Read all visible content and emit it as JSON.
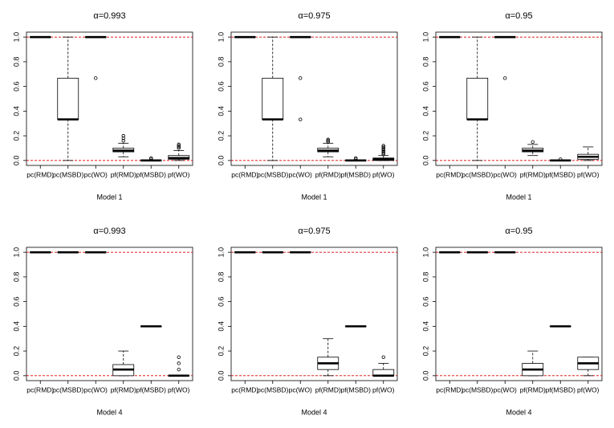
{
  "chart_data": [
    {
      "type": "box",
      "title": "α=0.993",
      "xlabel": "Model 1",
      "categories": [
        "pc(RMD)",
        "pc(MSBD)",
        "pc(WO)",
        "pf(RMD)",
        "pf(MSBD)",
        "pf(WO)"
      ],
      "boxes": [
        {
          "min": 1,
          "q1": 1,
          "median": 1,
          "q3": 1,
          "max": 1,
          "outliers": []
        },
        {
          "min": 0,
          "q1": 0.333,
          "median": 0.333,
          "q3": 0.667,
          "max": 1,
          "outliers": []
        },
        {
          "min": 1,
          "q1": 1,
          "median": 1,
          "q3": 1,
          "max": 1,
          "outliers": [
            0.667
          ]
        },
        {
          "min": 0.03,
          "q1": 0.07,
          "median": 0.08,
          "q3": 0.1,
          "max": 0.14,
          "outliers": [
            0.16,
            0.18,
            0.2
          ]
        },
        {
          "min": 0,
          "q1": 0,
          "median": 0,
          "q3": 0,
          "max": 0,
          "outliers": [
            0.01,
            0.02
          ]
        },
        {
          "min": 0,
          "q1": 0.01,
          "median": 0.02,
          "q3": 0.04,
          "max": 0.08,
          "outliers": [
            0.1,
            0.11,
            0.12,
            0.13
          ]
        }
      ],
      "ylim": [
        -0.04,
        1.04
      ],
      "yticks": [
        {
          "value": 0,
          "label": "0.0"
        },
        0.2,
        0.4,
        0.6,
        0.8,
        {
          "value": 1,
          "label": "1.0"
        }
      ],
      "hlines": [
        1,
        0
      ],
      "hline_color": "#e00000",
      "color": "#000000"
    },
    {
      "type": "box",
      "title": "α=0.975",
      "xlabel": "Model 1",
      "categories": [
        "pc(RMD)",
        "pc(MSBD)",
        "pc(WO)",
        "pf(RMD)",
        "pf(MSBD)",
        "pf(WO)"
      ],
      "boxes": [
        {
          "min": 1,
          "q1": 1,
          "median": 1,
          "q3": 1,
          "max": 1,
          "outliers": []
        },
        {
          "min": 0,
          "q1": 0.333,
          "median": 0.333,
          "q3": 0.667,
          "max": 1,
          "outliers": []
        },
        {
          "min": 1,
          "q1": 1,
          "median": 1,
          "q3": 1,
          "max": 1,
          "outliers": [
            0.667,
            0.333
          ]
        },
        {
          "min": 0.03,
          "q1": 0.07,
          "median": 0.08,
          "q3": 0.1,
          "max": 0.14,
          "outliers": [
            0.15,
            0.16,
            0.17
          ]
        },
        {
          "min": 0,
          "q1": 0,
          "median": 0,
          "q3": 0,
          "max": 0,
          "outliers": [
            0.01,
            0.02
          ]
        },
        {
          "min": 0,
          "q1": 0,
          "median": 0.01,
          "q3": 0.02,
          "max": 0.04,
          "outliers": [
            0.05,
            0.06,
            0.07,
            0.08,
            0.09,
            0.1,
            0.11,
            0.12
          ]
        }
      ],
      "ylim": [
        -0.04,
        1.04
      ],
      "yticks": [
        {
          "value": 0,
          "label": "0.0"
        },
        0.2,
        0.4,
        0.6,
        0.8,
        {
          "value": 1,
          "label": "1.0"
        }
      ],
      "hlines": [
        1,
        0
      ],
      "hline_color": "#e00000",
      "color": "#000000"
    },
    {
      "type": "box",
      "title": "α=0.95",
      "xlabel": "Model 1",
      "categories": [
        "pc(RMD)",
        "pc(MSBD)",
        "pc(WO)",
        "pf(RMD)",
        "pf(MSBD)",
        "pf(WO)"
      ],
      "boxes": [
        {
          "min": 1,
          "q1": 1,
          "median": 1,
          "q3": 1,
          "max": 1,
          "outliers": []
        },
        {
          "min": 0,
          "q1": 0.333,
          "median": 0.333,
          "q3": 0.667,
          "max": 1,
          "outliers": []
        },
        {
          "min": 1,
          "q1": 1,
          "median": 1,
          "q3": 1,
          "max": 1,
          "outliers": [
            0.667
          ]
        },
        {
          "min": 0.04,
          "q1": 0.07,
          "median": 0.08,
          "q3": 0.1,
          "max": 0.13,
          "outliers": [
            0.15
          ]
        },
        {
          "min": 0,
          "q1": 0,
          "median": 0,
          "q3": 0,
          "max": 0,
          "outliers": [
            0.01
          ]
        },
        {
          "min": 0,
          "q1": 0.01,
          "median": 0.03,
          "q3": 0.05,
          "max": 0.11,
          "outliers": []
        }
      ],
      "ylim": [
        -0.04,
        1.04
      ],
      "yticks": [
        {
          "value": 0,
          "label": "0.0"
        },
        0.2,
        0.4,
        0.6,
        0.8,
        {
          "value": 1,
          "label": "1.0"
        }
      ],
      "hlines": [
        1,
        0
      ],
      "hline_color": "#e00000",
      "color": "#000000"
    },
    {
      "type": "box",
      "title": "α=0.993",
      "xlabel": "Model 4",
      "categories": [
        "pc(RMD)",
        "pc(MSBD)",
        "pc(WO)",
        "pf(RMD)",
        "pf(MSBD)",
        "pf(WO)"
      ],
      "boxes": [
        {
          "min": 1,
          "q1": 1,
          "median": 1,
          "q3": 1,
          "max": 1,
          "outliers": []
        },
        {
          "min": 1,
          "q1": 1,
          "median": 1,
          "q3": 1,
          "max": 1,
          "outliers": []
        },
        {
          "min": 1,
          "q1": 1,
          "median": 1,
          "q3": 1,
          "max": 1,
          "outliers": []
        },
        {
          "min": 0,
          "q1": 0,
          "median": 0.05,
          "q3": 0.09,
          "max": 0.2,
          "outliers": []
        },
        {
          "min": 0.4,
          "q1": 0.4,
          "median": 0.4,
          "q3": 0.4,
          "max": 0.4,
          "outliers": []
        },
        {
          "min": 0,
          "q1": 0,
          "median": 0,
          "q3": 0,
          "max": 0,
          "outliers": [
            0.05,
            0.1,
            0.15
          ]
        }
      ],
      "ylim": [
        -0.04,
        1.04
      ],
      "yticks": [
        {
          "value": 0,
          "label": "0.0"
        },
        0.2,
        0.4,
        0.6,
        0.8,
        {
          "value": 1,
          "label": "1.0"
        }
      ],
      "hlines": [
        1,
        0
      ],
      "hline_color": "#e00000",
      "color": "#000000"
    },
    {
      "type": "box",
      "title": "α=0.975",
      "xlabel": "Model 4",
      "categories": [
        "pc(RMD)",
        "pc(MSBD)",
        "pc(WO)",
        "pf(RMD)",
        "pf(MSBD)",
        "pf(WO)"
      ],
      "boxes": [
        {
          "min": 1,
          "q1": 1,
          "median": 1,
          "q3": 1,
          "max": 1,
          "outliers": []
        },
        {
          "min": 1,
          "q1": 1,
          "median": 1,
          "q3": 1,
          "max": 1,
          "outliers": []
        },
        {
          "min": 1,
          "q1": 1,
          "median": 1,
          "q3": 1,
          "max": 1,
          "outliers": []
        },
        {
          "min": 0,
          "q1": 0.05,
          "median": 0.1,
          "q3": 0.15,
          "max": 0.3,
          "outliers": []
        },
        {
          "min": 0.4,
          "q1": 0.4,
          "median": 0.4,
          "q3": 0.4,
          "max": 0.4,
          "outliers": []
        },
        {
          "min": 0,
          "q1": 0,
          "median": 0,
          "q3": 0.05,
          "max": 0.1,
          "outliers": [
            0.15
          ]
        }
      ],
      "ylim": [
        -0.04,
        1.04
      ],
      "yticks": [
        {
          "value": 0,
          "label": "0.0"
        },
        0.2,
        0.4,
        0.6,
        0.8,
        {
          "value": 1,
          "label": "1.0"
        }
      ],
      "hlines": [
        1,
        0
      ],
      "hline_color": "#e00000",
      "color": "#000000"
    },
    {
      "type": "box",
      "title": "α=0.95",
      "xlabel": "Model 4",
      "categories": [
        "pc(RMD)",
        "pc(MSBD)",
        "pc(WO)",
        "pf(RMD)",
        "pf(MSBD)",
        "pf(WO)"
      ],
      "boxes": [
        {
          "min": 1,
          "q1": 1,
          "median": 1,
          "q3": 1,
          "max": 1,
          "outliers": []
        },
        {
          "min": 1,
          "q1": 1,
          "median": 1,
          "q3": 1,
          "max": 1,
          "outliers": []
        },
        {
          "min": 1,
          "q1": 1,
          "median": 1,
          "q3": 1,
          "max": 1,
          "outliers": []
        },
        {
          "min": 0,
          "q1": 0,
          "median": 0.05,
          "q3": 0.1,
          "max": 0.2,
          "outliers": []
        },
        {
          "min": 0.4,
          "q1": 0.4,
          "median": 0.4,
          "q3": 0.4,
          "max": 0.4,
          "outliers": []
        },
        {
          "min": 0,
          "q1": 0.05,
          "median": 0.1,
          "q3": 0.15,
          "max": 0.15,
          "outliers": []
        }
      ],
      "ylim": [
        -0.04,
        1.04
      ],
      "yticks": [
        {
          "value": 0,
          "label": "0.0"
        },
        0.2,
        0.4,
        0.6,
        0.8,
        {
          "value": 1,
          "label": "1.0"
        }
      ],
      "hlines": [
        1,
        0
      ],
      "hline_color": "#e00000",
      "color": "#000000"
    }
  ]
}
